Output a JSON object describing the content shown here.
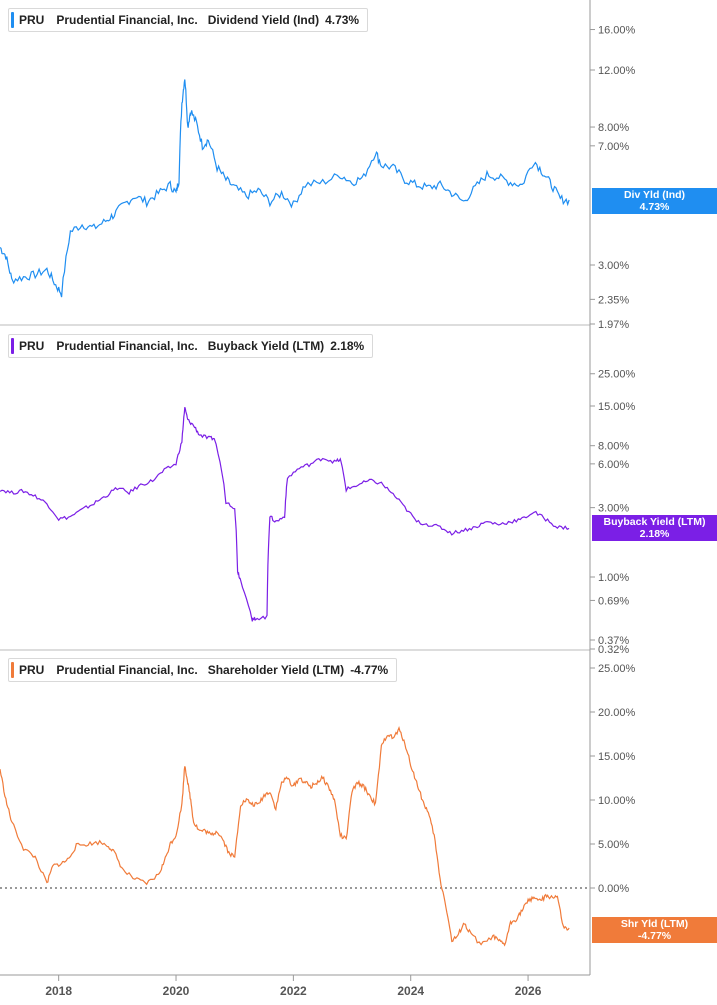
{
  "colors": {
    "dividend": "#1f8ef1",
    "buyback": "#7b1fe6",
    "shareholder": "#f07b3a",
    "axis": "#555555",
    "grid": "#cccccc"
  },
  "panels": [
    {
      "ticker": "PRU",
      "company": "Prudential Financial, Inc.",
      "metric": "Dividend Yield (Ind)",
      "value": "4.73%",
      "tag_line1": "Div Yld (Ind)",
      "tag_line2": "4.73%",
      "ticks": [
        "16.00%",
        "12.00%",
        "8.00%",
        "7.00%",
        "3.00%",
        "2.35%",
        "1.97%"
      ]
    },
    {
      "ticker": "PRU",
      "company": "Prudential Financial, Inc.",
      "metric": "Buyback Yield (LTM)",
      "value": "2.18%",
      "tag_line1": "Buyback Yield (LTM)",
      "tag_line2": "2.18%",
      "ticks": [
        "25.00%",
        "15.00%",
        "8.00%",
        "6.00%",
        "3.00%",
        "1.00%",
        "0.69%",
        "0.37%",
        "0.32%"
      ]
    },
    {
      "ticker": "PRU",
      "company": "Prudential Financial, Inc.",
      "metric": "Shareholder Yield (LTM)",
      "value": "-4.77%",
      "tag_line1": "Shr Yld (LTM)",
      "tag_line2": "-4.77%",
      "ticks": [
        "25.00%",
        "20.00%",
        "15.00%",
        "10.00%",
        "5.00%",
        "0.00%"
      ]
    }
  ],
  "x_labels": [
    "2018",
    "2020",
    "2022",
    "2024",
    "2026"
  ],
  "chart_data": [
    {
      "type": "line",
      "title": "PRU Prudential Financial, Inc. Dividend Yield (Ind)",
      "ylog": true,
      "x": [
        2017.0,
        2017.1,
        2017.2,
        2017.4,
        2017.6,
        2017.8,
        2017.95,
        2018.05,
        2018.2,
        2018.4,
        2018.6,
        2018.8,
        2018.95,
        2019.1,
        2019.3,
        2019.5,
        2019.7,
        2019.9,
        2020.0,
        2020.05,
        2020.1,
        2020.15,
        2020.2,
        2020.25,
        2020.35,
        2020.45,
        2020.55,
        2020.7,
        2020.85,
        2021.0,
        2021.2,
        2021.4,
        2021.6,
        2021.8,
        2022.0,
        2022.2,
        2022.5,
        2022.8,
        2023.0,
        2023.2,
        2023.4,
        2023.5,
        2023.7,
        2023.9,
        2024.1,
        2024.3,
        2024.5,
        2024.7,
        2024.9,
        2025.1,
        2025.3,
        2025.5,
        2025.7,
        2025.9,
        2026.1,
        2026.25,
        2026.4,
        2026.55,
        2026.7
      ],
      "y": [
        3.4,
        3.2,
        2.7,
        2.75,
        2.8,
        2.9,
        2.6,
        2.45,
        3.8,
        4.0,
        3.9,
        4.1,
        4.3,
        4.6,
        4.9,
        4.7,
        5.0,
        5.3,
        5.0,
        5.5,
        9.5,
        11.4,
        8.0,
        9.0,
        8.2,
        7.0,
        7.3,
        6.0,
        5.5,
        5.2,
        4.9,
        5.1,
        4.7,
        5.0,
        4.6,
        5.3,
        5.4,
        5.7,
        5.4,
        5.6,
        6.7,
        6.1,
        6.0,
        5.5,
        5.3,
        5.2,
        5.3,
        5.0,
        4.7,
        5.2,
        5.7,
        5.6,
        5.4,
        5.3,
        6.3,
        5.8,
        5.3,
        4.8,
        4.73
      ]
    },
    {
      "type": "line",
      "title": "PRU Prudential Financial, Inc. Buyback Yield (LTM)",
      "ylog": true,
      "x": [
        2017.0,
        2017.2,
        2017.4,
        2017.6,
        2017.8,
        2018.0,
        2018.2,
        2018.4,
        2018.6,
        2018.8,
        2019.0,
        2019.2,
        2019.4,
        2019.6,
        2019.8,
        2020.0,
        2020.1,
        2020.15,
        2020.2,
        2020.3,
        2020.4,
        2020.55,
        2020.65,
        2020.85,
        2021.0,
        2021.05,
        2021.1,
        2021.3,
        2021.35,
        2021.55,
        2021.6,
        2021.7,
        2021.85,
        2021.9,
        2022.1,
        2022.3,
        2022.5,
        2022.7,
        2022.8,
        2022.9,
        2023.1,
        2023.3,
        2023.5,
        2023.7,
        2023.9,
        2024.1,
        2024.3,
        2024.5,
        2024.7,
        2024.9,
        2025.1,
        2025.3,
        2025.5,
        2025.7,
        2025.9,
        2026.1,
        2026.3,
        2026.5,
        2026.7
      ],
      "y": [
        4.0,
        3.8,
        3.9,
        3.6,
        3.2,
        2.5,
        2.6,
        2.9,
        3.2,
        3.6,
        4.1,
        3.8,
        4.3,
        4.6,
        5.4,
        6.0,
        8.5,
        14.5,
        12.0,
        11.0,
        9.5,
        9.0,
        9.0,
        3.3,
        3.0,
        1.1,
        0.95,
        0.5,
        0.52,
        0.53,
        2.6,
        2.4,
        2.6,
        4.8,
        5.6,
        6.0,
        6.6,
        6.2,
        6.4,
        4.0,
        4.3,
        4.6,
        4.4,
        3.7,
        3.0,
        2.4,
        2.3,
        2.2,
        2.0,
        2.1,
        2.2,
        2.4,
        2.3,
        2.4,
        2.5,
        2.8,
        2.5,
        2.2,
        2.18
      ]
    },
    {
      "type": "line",
      "title": "PRU Prudential Financial, Inc. Shareholder Yield (LTM)",
      "x": [
        2017.0,
        2017.1,
        2017.2,
        2017.4,
        2017.6,
        2017.8,
        2017.9,
        2018.05,
        2018.15,
        2018.3,
        2018.5,
        2018.7,
        2018.85,
        2018.95,
        2019.1,
        2019.3,
        2019.5,
        2019.7,
        2019.8,
        2019.9,
        2020.0,
        2020.1,
        2020.15,
        2020.2,
        2020.25,
        2020.3,
        2020.4,
        2020.5,
        2020.6,
        2020.7,
        2020.8,
        2020.9,
        2021.0,
        2021.1,
        2021.2,
        2021.3,
        2021.4,
        2021.5,
        2021.6,
        2021.7,
        2021.8,
        2021.9,
        2022.0,
        2022.1,
        2022.2,
        2022.3,
        2022.4,
        2022.5,
        2022.6,
        2022.7,
        2022.8,
        2022.9,
        2023.0,
        2023.1,
        2023.2,
        2023.3,
        2023.4,
        2023.5,
        2023.6,
        2023.7,
        2023.8,
        2023.9,
        2024.0,
        2024.1,
        2024.2,
        2024.3,
        2024.4,
        2024.5,
        2024.6,
        2024.7,
        2024.8,
        2024.9,
        2025.0,
        2025.2,
        2025.4,
        2025.5,
        2025.6,
        2025.7,
        2025.8,
        2025.9,
        2026.0,
        2026.1,
        2026.2,
        2026.3,
        2026.4,
        2026.5,
        2026.6,
        2026.7
      ],
      "y": [
        13.5,
        10.0,
        7.5,
        4.5,
        3.5,
        0.5,
        2.5,
        2.8,
        3.2,
        4.8,
        5.0,
        5.2,
        4.8,
        4.0,
        2.0,
        1.0,
        0.5,
        1.5,
        3.0,
        5.0,
        6.0,
        9.5,
        14.0,
        12.0,
        10.0,
        7.5,
        6.5,
        6.5,
        6.0,
        6.5,
        5.5,
        4.0,
        3.5,
        9.5,
        10.0,
        9.5,
        9.5,
        10.5,
        11.0,
        9.0,
        12.0,
        12.5,
        11.5,
        12.5,
        12.0,
        11.5,
        12.0,
        12.5,
        11.5,
        10.0,
        6.0,
        5.5,
        11.0,
        12.0,
        11.5,
        10.5,
        9.5,
        16.0,
        17.5,
        17.0,
        18.0,
        16.5,
        14.0,
        12.0,
        10.0,
        8.5,
        6.0,
        1.0,
        -2.0,
        -6.0,
        -5.5,
        -4.0,
        -5.0,
        -6.5,
        -5.5,
        -6.0,
        -6.5,
        -4.0,
        -3.5,
        -2.5,
        -1.5,
        -1.0,
        -1.5,
        -1.0,
        -1.0,
        -1.0,
        -4.5,
        -4.77
      ]
    }
  ]
}
